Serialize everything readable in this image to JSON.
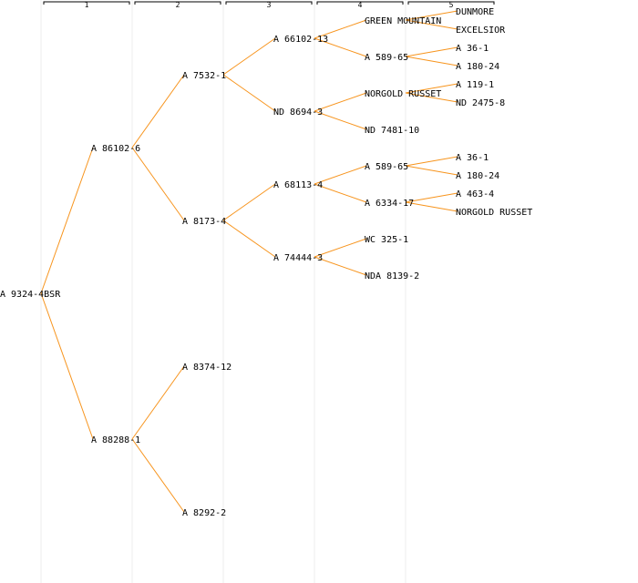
{
  "colors": {
    "edge": "#f7941d",
    "guide": "#ececec",
    "text": "#000000"
  },
  "generations": [
    "1",
    "2",
    "3",
    "4",
    "5"
  ],
  "tree": {
    "label": "A 9324-4BSR",
    "children": [
      {
        "label": "A 86102-6",
        "children": [
          {
            "label": "A 7532-1",
            "children": [
              {
                "label": "A 66102-13",
                "children": [
                  {
                    "label": "GREEN MOUNTAIN",
                    "children": [
                      {
                        "label": "DUNMORE"
                      },
                      {
                        "label": "EXCELSIOR"
                      }
                    ]
                  },
                  {
                    "label": "A 589-65",
                    "children": [
                      {
                        "label": "A 36-1"
                      },
                      {
                        "label": "A 180-24"
                      }
                    ]
                  }
                ]
              },
              {
                "label": "ND 8694-3",
                "children": [
                  {
                    "label": "NORGOLD RUSSET",
                    "children": [
                      {
                        "label": "A 119-1"
                      },
                      {
                        "label": "ND 2475-8"
                      }
                    ]
                  },
                  {
                    "label": "ND 7481-10"
                  }
                ]
              }
            ]
          },
          {
            "label": "A 8173-4",
            "children": [
              {
                "label": "A 68113-4",
                "children": [
                  {
                    "label": "A 589-65",
                    "children": [
                      {
                        "label": "A 36-1"
                      },
                      {
                        "label": "A 180-24"
                      }
                    ]
                  },
                  {
                    "label": "A 6334-17",
                    "children": [
                      {
                        "label": "A 463-4"
                      },
                      {
                        "label": "NORGOLD RUSSET"
                      }
                    ]
                  }
                ]
              },
              {
                "label": "A 74444-3",
                "children": [
                  {
                    "label": "WC 325-1"
                  },
                  {
                    "label": "NDA 8139-2"
                  }
                ]
              }
            ]
          }
        ]
      },
      {
        "label": "A 88288-1",
        "children": [
          {
            "label": "A 8374-12"
          },
          {
            "label": "A 8292-2"
          }
        ]
      }
    ]
  }
}
